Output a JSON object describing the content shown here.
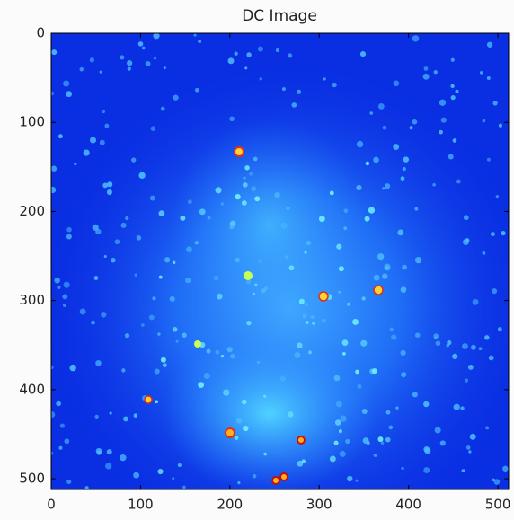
{
  "chart_data": {
    "type": "image",
    "title": "DC Image",
    "xlim": [
      0,
      512
    ],
    "xticks": [
      0,
      100,
      200,
      300,
      400,
      500
    ],
    "ylim": [
      512,
      0
    ],
    "yticks": [
      0,
      100,
      200,
      300,
      400,
      500
    ]
  }
}
